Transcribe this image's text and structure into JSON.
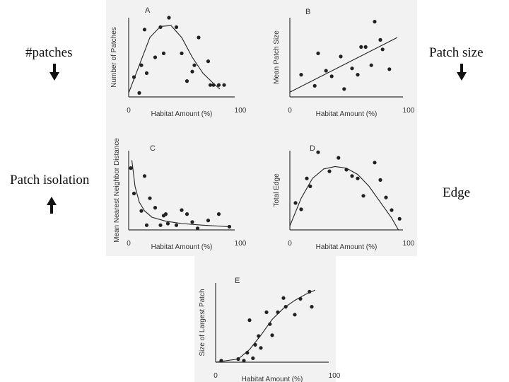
{
  "side_labels": {
    "patches": "#patches",
    "patch_size": "Patch size",
    "patch_isolation": "Patch isolation",
    "edge": "Edge"
  },
  "arrows": {
    "patches": "down",
    "patch_size": "down",
    "patch_isolation": "up"
  },
  "colors": {
    "ink": "#222222",
    "axis": "#333333",
    "paper": "#f2f2f2"
  },
  "chart_data": [
    {
      "id": "A",
      "type": "scatter",
      "xlabel": "Habitat Amount (%)",
      "ylabel": "Number of Patches",
      "xlim": [
        0,
        100
      ],
      "ylim": [
        0,
        10
      ],
      "x_ticks": [
        "0",
        "100"
      ],
      "points": [
        [
          5,
          2.5
        ],
        [
          10,
          0.5
        ],
        [
          12,
          4
        ],
        [
          15,
          8.5
        ],
        [
          17,
          3
        ],
        [
          25,
          5
        ],
        [
          30,
          8.8
        ],
        [
          33,
          5.5
        ],
        [
          38,
          10
        ],
        [
          45,
          8.8
        ],
        [
          50,
          5.5
        ],
        [
          55,
          2
        ],
        [
          60,
          3.2
        ],
        [
          62,
          4
        ],
        [
          66,
          7.5
        ],
        [
          75,
          4.5
        ],
        [
          77,
          1.5
        ],
        [
          80,
          1.5
        ],
        [
          85,
          1.5
        ],
        [
          90,
          1.5
        ]
      ],
      "fit": [
        [
          0,
          0.5
        ],
        [
          10,
          4
        ],
        [
          20,
          7.5
        ],
        [
          30,
          8.9
        ],
        [
          40,
          9
        ],
        [
          50,
          7.5
        ],
        [
          60,
          5
        ],
        [
          70,
          3
        ],
        [
          80,
          1.7
        ],
        [
          86,
          1
        ]
      ]
    },
    {
      "id": "B",
      "type": "scatter",
      "xlabel": "Habitat Amount (%)",
      "ylabel": "Mean Patch Size",
      "xlim": [
        0,
        100
      ],
      "ylim": [
        0,
        10
      ],
      "x_ticks": [
        "0",
        "100"
      ],
      "points": [
        [
          10,
          2.8
        ],
        [
          22,
          1.4
        ],
        [
          25,
          5.5
        ],
        [
          32,
          3.3
        ],
        [
          37,
          2.6
        ],
        [
          45,
          5.1
        ],
        [
          48,
          1.0
        ],
        [
          55,
          3.6
        ],
        [
          60,
          2.8
        ],
        [
          63,
          6.3
        ],
        [
          67,
          6.3
        ],
        [
          72,
          4
        ],
        [
          75,
          9.5
        ],
        [
          80,
          7.2
        ],
        [
          82,
          6
        ],
        [
          88,
          3.5
        ]
      ],
      "fit": [
        [
          0,
          0.6
        ],
        [
          95,
          7.5
        ]
      ]
    },
    {
      "id": "C",
      "type": "scatter",
      "xlabel": "Habitat Amount (%)",
      "ylabel": "Mean Nearest Neighbor Distance",
      "xlim": [
        0,
        100
      ],
      "ylim": [
        0,
        10
      ],
      "x_ticks": [
        "0",
        "100"
      ],
      "points": [
        [
          2,
          7.8
        ],
        [
          5,
          4.6
        ],
        [
          12,
          2.4
        ],
        [
          15,
          6.8
        ],
        [
          17,
          0.6
        ],
        [
          20,
          4.0
        ],
        [
          25,
          2.8
        ],
        [
          30,
          0.6
        ],
        [
          33,
          1.8
        ],
        [
          35,
          2.0
        ],
        [
          37,
          0.8
        ],
        [
          45,
          0.6
        ],
        [
          50,
          2.5
        ],
        [
          55,
          2
        ],
        [
          60,
          1.0
        ],
        [
          65,
          0.2
        ],
        [
          75,
          1.2
        ],
        [
          85,
          2.0
        ],
        [
          95,
          0.4
        ]
      ],
      "fit": [
        [
          3,
          8.8
        ],
        [
          6,
          5.5
        ],
        [
          10,
          3.5
        ],
        [
          15,
          2.4
        ],
        [
          22,
          1.6
        ],
        [
          35,
          1.1
        ],
        [
          50,
          0.8
        ],
        [
          70,
          0.6
        ],
        [
          95,
          0.4
        ]
      ]
    },
    {
      "id": "D",
      "type": "scatter",
      "xlabel": "Habitat Amount (%)",
      "ylabel": "Total Edge",
      "xlim": [
        0,
        100
      ],
      "ylim": [
        0,
        10
      ],
      "x_ticks": [
        "0",
        "100"
      ],
      "points": [
        [
          5,
          3.4
        ],
        [
          10,
          2.6
        ],
        [
          15,
          6.5
        ],
        [
          18,
          5.5
        ],
        [
          25,
          9.8
        ],
        [
          35,
          7.4
        ],
        [
          43,
          9.1
        ],
        [
          50,
          7.6
        ],
        [
          55,
          6.8
        ],
        [
          60,
          6.5
        ],
        [
          65,
          4.3
        ],
        [
          75,
          8.5
        ],
        [
          80,
          6.3
        ],
        [
          85,
          4.1
        ],
        [
          90,
          2.5
        ],
        [
          97,
          1.4
        ]
      ],
      "fit": [
        [
          0,
          0.5
        ],
        [
          10,
          4
        ],
        [
          20,
          6.5
        ],
        [
          30,
          7.7
        ],
        [
          40,
          8
        ],
        [
          50,
          7.8
        ],
        [
          60,
          7
        ],
        [
          70,
          5.5
        ],
        [
          80,
          3.5
        ],
        [
          90,
          1.5
        ],
        [
          96,
          0
        ]
      ]
    },
    {
      "id": "E",
      "type": "scatter",
      "xlabel": "Habitat Amount (%)",
      "ylabel": "Size of Largest Patch",
      "xlim": [
        0,
        100
      ],
      "ylim": [
        0,
        10
      ],
      "x_ticks": [
        "0",
        "100"
      ],
      "points": [
        [
          5,
          0.2
        ],
        [
          20,
          0.4
        ],
        [
          25,
          0.2
        ],
        [
          28,
          1.2
        ],
        [
          30,
          5.3
        ],
        [
          33,
          0.5
        ],
        [
          35,
          2.2
        ],
        [
          38,
          3.3
        ],
        [
          40,
          1.8
        ],
        [
          45,
          6.3
        ],
        [
          48,
          4.8
        ],
        [
          50,
          3.4
        ],
        [
          55,
          6.3
        ],
        [
          60,
          8.1
        ],
        [
          62,
          7.0
        ],
        [
          70,
          6.0
        ],
        [
          75,
          8.0
        ],
        [
          83,
          8.9
        ],
        [
          85,
          7.0
        ]
      ],
      "fit": [
        [
          0,
          0
        ],
        [
          20,
          0.4
        ],
        [
          30,
          1.6
        ],
        [
          40,
          3.4
        ],
        [
          50,
          5.4
        ],
        [
          60,
          6.8
        ],
        [
          70,
          7.8
        ],
        [
          80,
          8.6
        ],
        [
          88,
          9.1
        ]
      ]
    }
  ]
}
